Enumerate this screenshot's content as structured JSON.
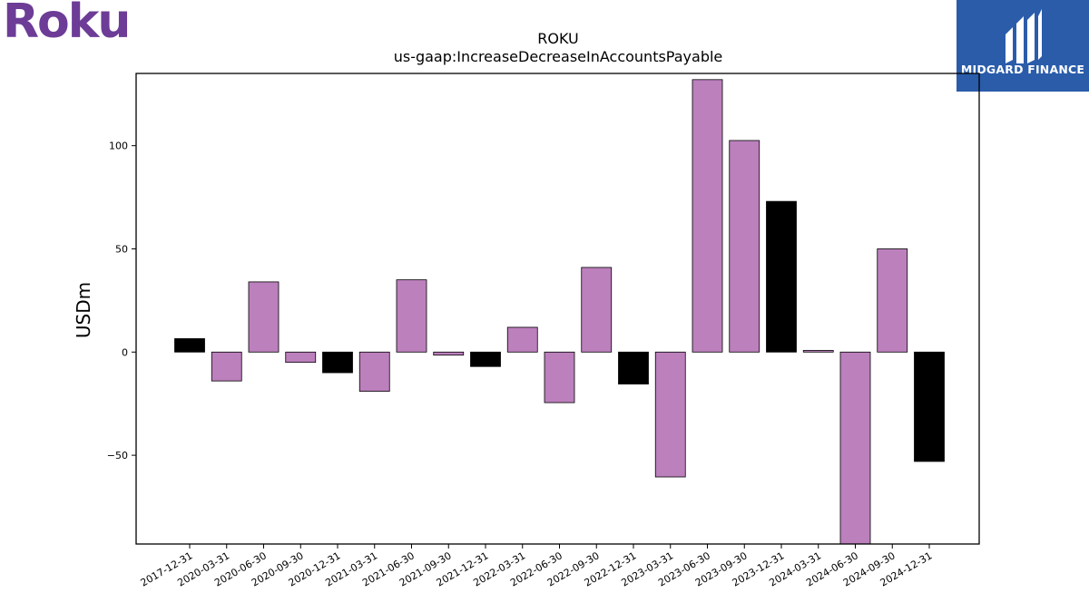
{
  "logos": {
    "roku_text": "Roku",
    "midgard_text": "MIDGARD FINANCE"
  },
  "colors": {
    "bar_purple": "#bc80bd",
    "bar_black": "#000000",
    "roku_purple": "#6c3c97",
    "midgard_blue": "#2a5caa"
  },
  "chart_data": {
    "type": "bar",
    "title": "ROKU",
    "subtitle": "us-gaap:IncreaseDecreaseInAccountsPayable",
    "xlabel": "",
    "ylabel": "USDm",
    "ylim": [
      -93,
      135
    ],
    "yticks": [
      -50,
      0,
      50,
      100
    ],
    "grid": false,
    "categories": [
      "2017-12-31",
      "2020-03-31",
      "2020-06-30",
      "2020-09-30",
      "2020-12-31",
      "2021-03-31",
      "2021-06-30",
      "2021-09-30",
      "2021-12-31",
      "2022-03-31",
      "2022-06-30",
      "2022-09-30",
      "2022-12-31",
      "2023-03-31",
      "2023-06-30",
      "2023-09-30",
      "2023-12-31",
      "2024-03-31",
      "2024-06-30",
      "2024-09-30",
      "2024-12-31"
    ],
    "values": [
      6.5,
      -14,
      34,
      -5,
      -10,
      -19,
      35,
      -1.5,
      -7,
      12,
      -24.5,
      41,
      -15.5,
      -60.5,
      132,
      102.5,
      73,
      0.8,
      -95,
      50,
      -53
    ],
    "bar_colors": [
      "black",
      "purple",
      "purple",
      "purple",
      "black",
      "purple",
      "purple",
      "purple",
      "black",
      "purple",
      "purple",
      "purple",
      "black",
      "purple",
      "purple",
      "purple",
      "black",
      "purple",
      "purple",
      "purple",
      "black"
    ]
  }
}
